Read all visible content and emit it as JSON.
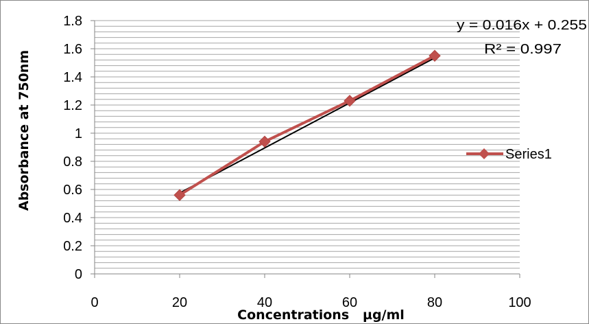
{
  "chart_data": {
    "type": "line",
    "title": "",
    "xlabel": "Concentrations   µg/ml",
    "ylabel": "Absorbance at 750nm",
    "xlim": [
      0,
      100
    ],
    "ylim": [
      0,
      1.8
    ],
    "x_ticks": [
      "0",
      "20",
      "40",
      "60",
      "80",
      "100"
    ],
    "y_ticks": [
      "0",
      "0.2",
      "0.4",
      "0.6",
      "0.8",
      "1",
      "1.2",
      "1.4",
      "1.6",
      "1.8"
    ],
    "grid": true,
    "legend_position": "right",
    "series": [
      {
        "name": "Series1",
        "color": "#c0504d",
        "marker": "diamond",
        "x": [
          20,
          40,
          60,
          80
        ],
        "y": [
          0.56,
          0.94,
          1.23,
          1.55
        ]
      }
    ],
    "trendline": {
      "type": "linear",
      "slope": 0.016,
      "intercept": 0.255,
      "color": "#000000",
      "equation_label": "y = 0.016x + 0.255",
      "r2_label": "R² = 0.997"
    }
  }
}
